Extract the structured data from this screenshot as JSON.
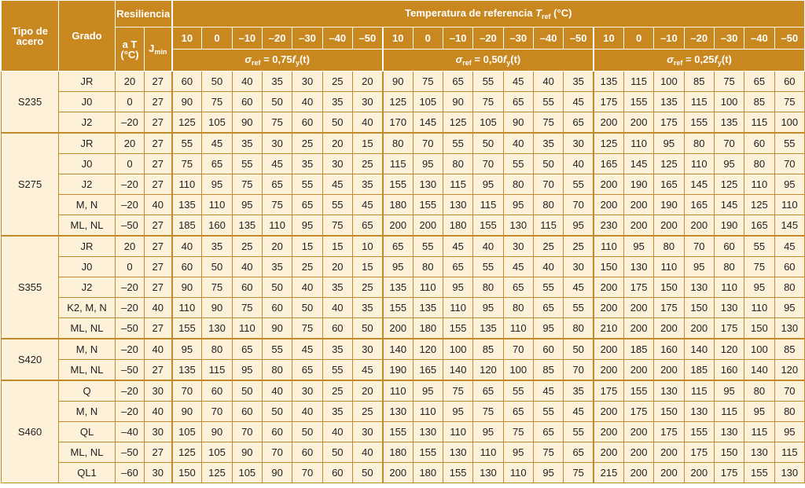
{
  "headers": {
    "tipo_acero": "Tipo de acero",
    "grado": "Grado",
    "resiliencia": "Resiliencia",
    "a_t": "a T (°C)",
    "j_min_main": "J",
    "j_min_sub": "min",
    "temp_ref_main": "Temperatura de referencia ",
    "temp_ref_var": "T",
    "temp_ref_sub": "ref",
    "temp_ref_unit": " (°C)",
    "temps": [
      "10",
      "0",
      "–10",
      "–20",
      "–30",
      "–40",
      "–50"
    ],
    "sigma_groups": [
      {
        "prefix": "σ",
        "sub": "ref",
        "formula": " = 0,75",
        "f": "f",
        "fsub": "y",
        "tail": "(t)"
      },
      {
        "prefix": "σ",
        "sub": "ref",
        "formula": " = 0,50",
        "f": "f",
        "fsub": "y",
        "tail": "(t)"
      },
      {
        "prefix": "σ",
        "sub": "ref",
        "formula": " = 0,25",
        "f": "f",
        "fsub": "y",
        "tail": "(t)"
      }
    ]
  },
  "rows": [
    {
      "tipo": "S235",
      "grado": "JR",
      "aT": "20",
      "jmin": "27",
      "v075": [
        "60",
        "50",
        "40",
        "35",
        "30",
        "25",
        "20"
      ],
      "v050": [
        "90",
        "75",
        "65",
        "55",
        "45",
        "40",
        "35"
      ],
      "v025": [
        "135",
        "115",
        "100",
        "85",
        "75",
        "65",
        "60"
      ]
    },
    {
      "tipo": "",
      "grado": "J0",
      "aT": "0",
      "jmin": "27",
      "v075": [
        "90",
        "75",
        "60",
        "50",
        "40",
        "35",
        "30"
      ],
      "v050": [
        "125",
        "105",
        "90",
        "75",
        "65",
        "55",
        "45"
      ],
      "v025": [
        "175",
        "155",
        "135",
        "115",
        "100",
        "85",
        "75"
      ]
    },
    {
      "tipo": "",
      "grado": "J2",
      "aT": "–20",
      "jmin": "27",
      "v075": [
        "125",
        "105",
        "90",
        "75",
        "60",
        "50",
        "40"
      ],
      "v050": [
        "170",
        "145",
        "125",
        "105",
        "90",
        "75",
        "65"
      ],
      "v025": [
        "200",
        "200",
        "175",
        "155",
        "135",
        "115",
        "100"
      ]
    },
    {
      "tipo": "S275",
      "grado": "JR",
      "aT": "20",
      "jmin": "27",
      "v075": [
        "55",
        "45",
        "35",
        "30",
        "25",
        "20",
        "15"
      ],
      "v050": [
        "80",
        "70",
        "55",
        "50",
        "40",
        "35",
        "30"
      ],
      "v025": [
        "125",
        "110",
        "95",
        "80",
        "70",
        "60",
        "55"
      ]
    },
    {
      "tipo": "",
      "grado": "J0",
      "aT": "0",
      "jmin": "27",
      "v075": [
        "75",
        "65",
        "55",
        "45",
        "35",
        "30",
        "25"
      ],
      "v050": [
        "115",
        "95",
        "80",
        "70",
        "55",
        "50",
        "40"
      ],
      "v025": [
        "165",
        "145",
        "125",
        "110",
        "95",
        "80",
        "70"
      ]
    },
    {
      "tipo": "",
      "grado": "J2",
      "aT": "–20",
      "jmin": "27",
      "v075": [
        "110",
        "95",
        "75",
        "65",
        "55",
        "45",
        "35"
      ],
      "v050": [
        "155",
        "130",
        "115",
        "95",
        "80",
        "70",
        "55"
      ],
      "v025": [
        "200",
        "190",
        "165",
        "145",
        "125",
        "110",
        "95"
      ]
    },
    {
      "tipo": "",
      "grado": "M, N",
      "aT": "–20",
      "jmin": "40",
      "v075": [
        "135",
        "110",
        "95",
        "75",
        "65",
        "55",
        "45"
      ],
      "v050": [
        "180",
        "155",
        "130",
        "115",
        "95",
        "80",
        "70"
      ],
      "v025": [
        "200",
        "200",
        "190",
        "165",
        "145",
        "125",
        "110"
      ]
    },
    {
      "tipo": "",
      "grado": "ML, NL",
      "aT": "–50",
      "jmin": "27",
      "v075": [
        "185",
        "160",
        "135",
        "110",
        "95",
        "75",
        "65"
      ],
      "v050": [
        "200",
        "200",
        "180",
        "155",
        "130",
        "115",
        "95"
      ],
      "v025": [
        "230",
        "200",
        "200",
        "200",
        "190",
        "165",
        "145"
      ]
    },
    {
      "tipo": "S355",
      "grado": "JR",
      "aT": "20",
      "jmin": "27",
      "v075": [
        "40",
        "35",
        "25",
        "20",
        "15",
        "15",
        "10"
      ],
      "v050": [
        "65",
        "55",
        "45",
        "40",
        "30",
        "25",
        "25"
      ],
      "v025": [
        "110",
        "95",
        "80",
        "70",
        "60",
        "55",
        "45"
      ]
    },
    {
      "tipo": "",
      "grado": "J0",
      "aT": "0",
      "jmin": "27",
      "v075": [
        "60",
        "50",
        "40",
        "35",
        "25",
        "20",
        "15"
      ],
      "v050": [
        "95",
        "80",
        "65",
        "55",
        "45",
        "40",
        "30"
      ],
      "v025": [
        "150",
        "130",
        "110",
        "95",
        "80",
        "75",
        "60"
      ]
    },
    {
      "tipo": "",
      "grado": "J2",
      "aT": "–20",
      "jmin": "27",
      "v075": [
        "90",
        "75",
        "60",
        "50",
        "40",
        "35",
        "25"
      ],
      "v050": [
        "135",
        "110",
        "95",
        "80",
        "65",
        "55",
        "45"
      ],
      "v025": [
        "200",
        "175",
        "150",
        "130",
        "110",
        "95",
        "80"
      ]
    },
    {
      "tipo": "",
      "grado": "K2, M, N",
      "aT": "–20",
      "jmin": "40",
      "v075": [
        "110",
        "90",
        "75",
        "60",
        "50",
        "40",
        "35"
      ],
      "v050": [
        "155",
        "135",
        "110",
        "95",
        "80",
        "65",
        "55"
      ],
      "v025": [
        "200",
        "200",
        "175",
        "150",
        "130",
        "110",
        "95"
      ]
    },
    {
      "tipo": "",
      "grado": "ML, NL",
      "aT": "–50",
      "jmin": "27",
      "v075": [
        "155",
        "130",
        "110",
        "90",
        "75",
        "60",
        "50"
      ],
      "v050": [
        "200",
        "180",
        "155",
        "135",
        "110",
        "95",
        "80"
      ],
      "v025": [
        "210",
        "200",
        "200",
        "200",
        "175",
        "150",
        "130"
      ]
    },
    {
      "tipo": "S420",
      "grado": "M, N",
      "aT": "–20",
      "jmin": "40",
      "v075": [
        "95",
        "80",
        "65",
        "55",
        "45",
        "35",
        "30"
      ],
      "v050": [
        "140",
        "120",
        "100",
        "85",
        "70",
        "60",
        "50"
      ],
      "v025": [
        "200",
        "185",
        "160",
        "140",
        "120",
        "100",
        "85"
      ]
    },
    {
      "tipo": "",
      "grado": "ML, NL",
      "aT": "–50",
      "jmin": "27",
      "v075": [
        "135",
        "115",
        "95",
        "80",
        "65",
        "55",
        "45"
      ],
      "v050": [
        "190",
        "165",
        "140",
        "120",
        "100",
        "85",
        "70"
      ],
      "v025": [
        "200",
        "200",
        "200",
        "185",
        "160",
        "140",
        "120"
      ]
    },
    {
      "tipo": "S460",
      "grado": "Q",
      "aT": "–20",
      "jmin": "30",
      "v075": [
        "70",
        "60",
        "50",
        "40",
        "30",
        "25",
        "20"
      ],
      "v050": [
        "110",
        "95",
        "75",
        "65",
        "55",
        "45",
        "35"
      ],
      "v025": [
        "175",
        "155",
        "130",
        "115",
        "95",
        "80",
        "70"
      ]
    },
    {
      "tipo": "",
      "grado": "M, N",
      "aT": "–20",
      "jmin": "40",
      "v075": [
        "90",
        "70",
        "60",
        "50",
        "40",
        "35",
        "25"
      ],
      "v050": [
        "130",
        "110",
        "95",
        "75",
        "65",
        "55",
        "45"
      ],
      "v025": [
        "200",
        "175",
        "150",
        "130",
        "115",
        "95",
        "80"
      ]
    },
    {
      "tipo": "",
      "grado": "QL",
      "aT": "–40",
      "jmin": "30",
      "v075": [
        "105",
        "90",
        "70",
        "60",
        "50",
        "40",
        "30"
      ],
      "v050": [
        "155",
        "130",
        "110",
        "95",
        "75",
        "65",
        "55"
      ],
      "v025": [
        "200",
        "200",
        "175",
        "155",
        "130",
        "115",
        "95"
      ]
    },
    {
      "tipo": "",
      "grado": "ML, NL",
      "aT": "–50",
      "jmin": "27",
      "v075": [
        "125",
        "105",
        "90",
        "70",
        "60",
        "50",
        "40"
      ],
      "v050": [
        "180",
        "155",
        "130",
        "110",
        "95",
        "75",
        "65"
      ],
      "v025": [
        "200",
        "200",
        "200",
        "175",
        "150",
        "130",
        "115"
      ]
    },
    {
      "tipo": "",
      "grado": "QL1",
      "aT": "–60",
      "jmin": "30",
      "v075": [
        "150",
        "125",
        "105",
        "90",
        "70",
        "60",
        "50"
      ],
      "v050": [
        "200",
        "180",
        "155",
        "130",
        "110",
        "95",
        "75"
      ],
      "v025": [
        "215",
        "200",
        "200",
        "200",
        "175",
        "155",
        "130"
      ]
    }
  ],
  "groups": [
    {
      "tipo": "S235",
      "start": 0,
      "span": 3
    },
    {
      "tipo": "S275",
      "start": 3,
      "span": 5
    },
    {
      "tipo": "S355",
      "start": 8,
      "span": 5
    },
    {
      "tipo": "S420",
      "start": 13,
      "span": 2
    },
    {
      "tipo": "S460",
      "start": 15,
      "span": 5
    }
  ],
  "colors": {
    "header_bg": "#c8871f",
    "cell_bg": "#fdf1da",
    "border": "#c28a2a"
  }
}
